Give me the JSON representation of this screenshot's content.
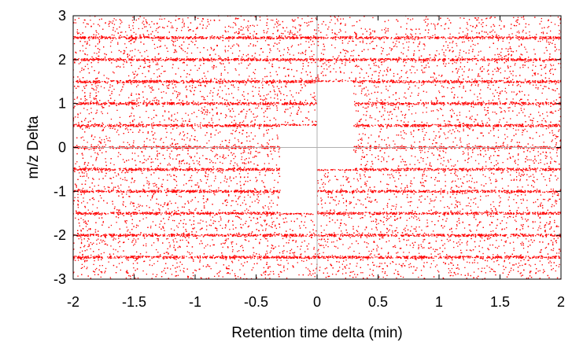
{
  "chart_data": {
    "type": "scatter",
    "title": "",
    "xlabel": "Retention time delta (min)",
    "ylabel": "m/z Delta",
    "xlim": [
      -2,
      2
    ],
    "ylim": [
      -3,
      3
    ],
    "x_ticks": [
      -2,
      -1.5,
      -1,
      -0.5,
      0,
      0.5,
      1,
      1.5,
      2
    ],
    "x_tick_labels": [
      "-2",
      "-1.5",
      "-1",
      "-0.5",
      "0",
      "0.5",
      "1",
      "1.5",
      "2"
    ],
    "y_ticks": [
      -3,
      -2,
      -1,
      0,
      1,
      2,
      3
    ],
    "y_tick_labels": [
      "-3",
      "-2",
      "-1",
      "0",
      "1",
      "2",
      "3"
    ],
    "grid": false,
    "reference_lines": [
      {
        "axis": "x",
        "value": 0
      },
      {
        "axis": "y",
        "value": 0
      }
    ],
    "series": [
      {
        "color": "#ff0000",
        "marker": "dot",
        "distribution": "dense uniform noise with horizontal bands of higher density",
        "dense_bands_y": [
          -2.5,
          -2,
          -1.5,
          -1,
          -0.5,
          0,
          0.5,
          1,
          1.5,
          2,
          2.5
        ],
        "empty_regions": [
          {
            "x": [
              0,
              0.3
            ],
            "y": [
              -0.5,
              1.5
            ]
          },
          {
            "x": [
              -0.3,
              0
            ],
            "y": [
              -1.5,
              0.5
            ]
          }
        ]
      }
    ]
  },
  "colors": {
    "points": "#ff0000",
    "axes": "#000000",
    "reference": "#b0b0b0"
  }
}
